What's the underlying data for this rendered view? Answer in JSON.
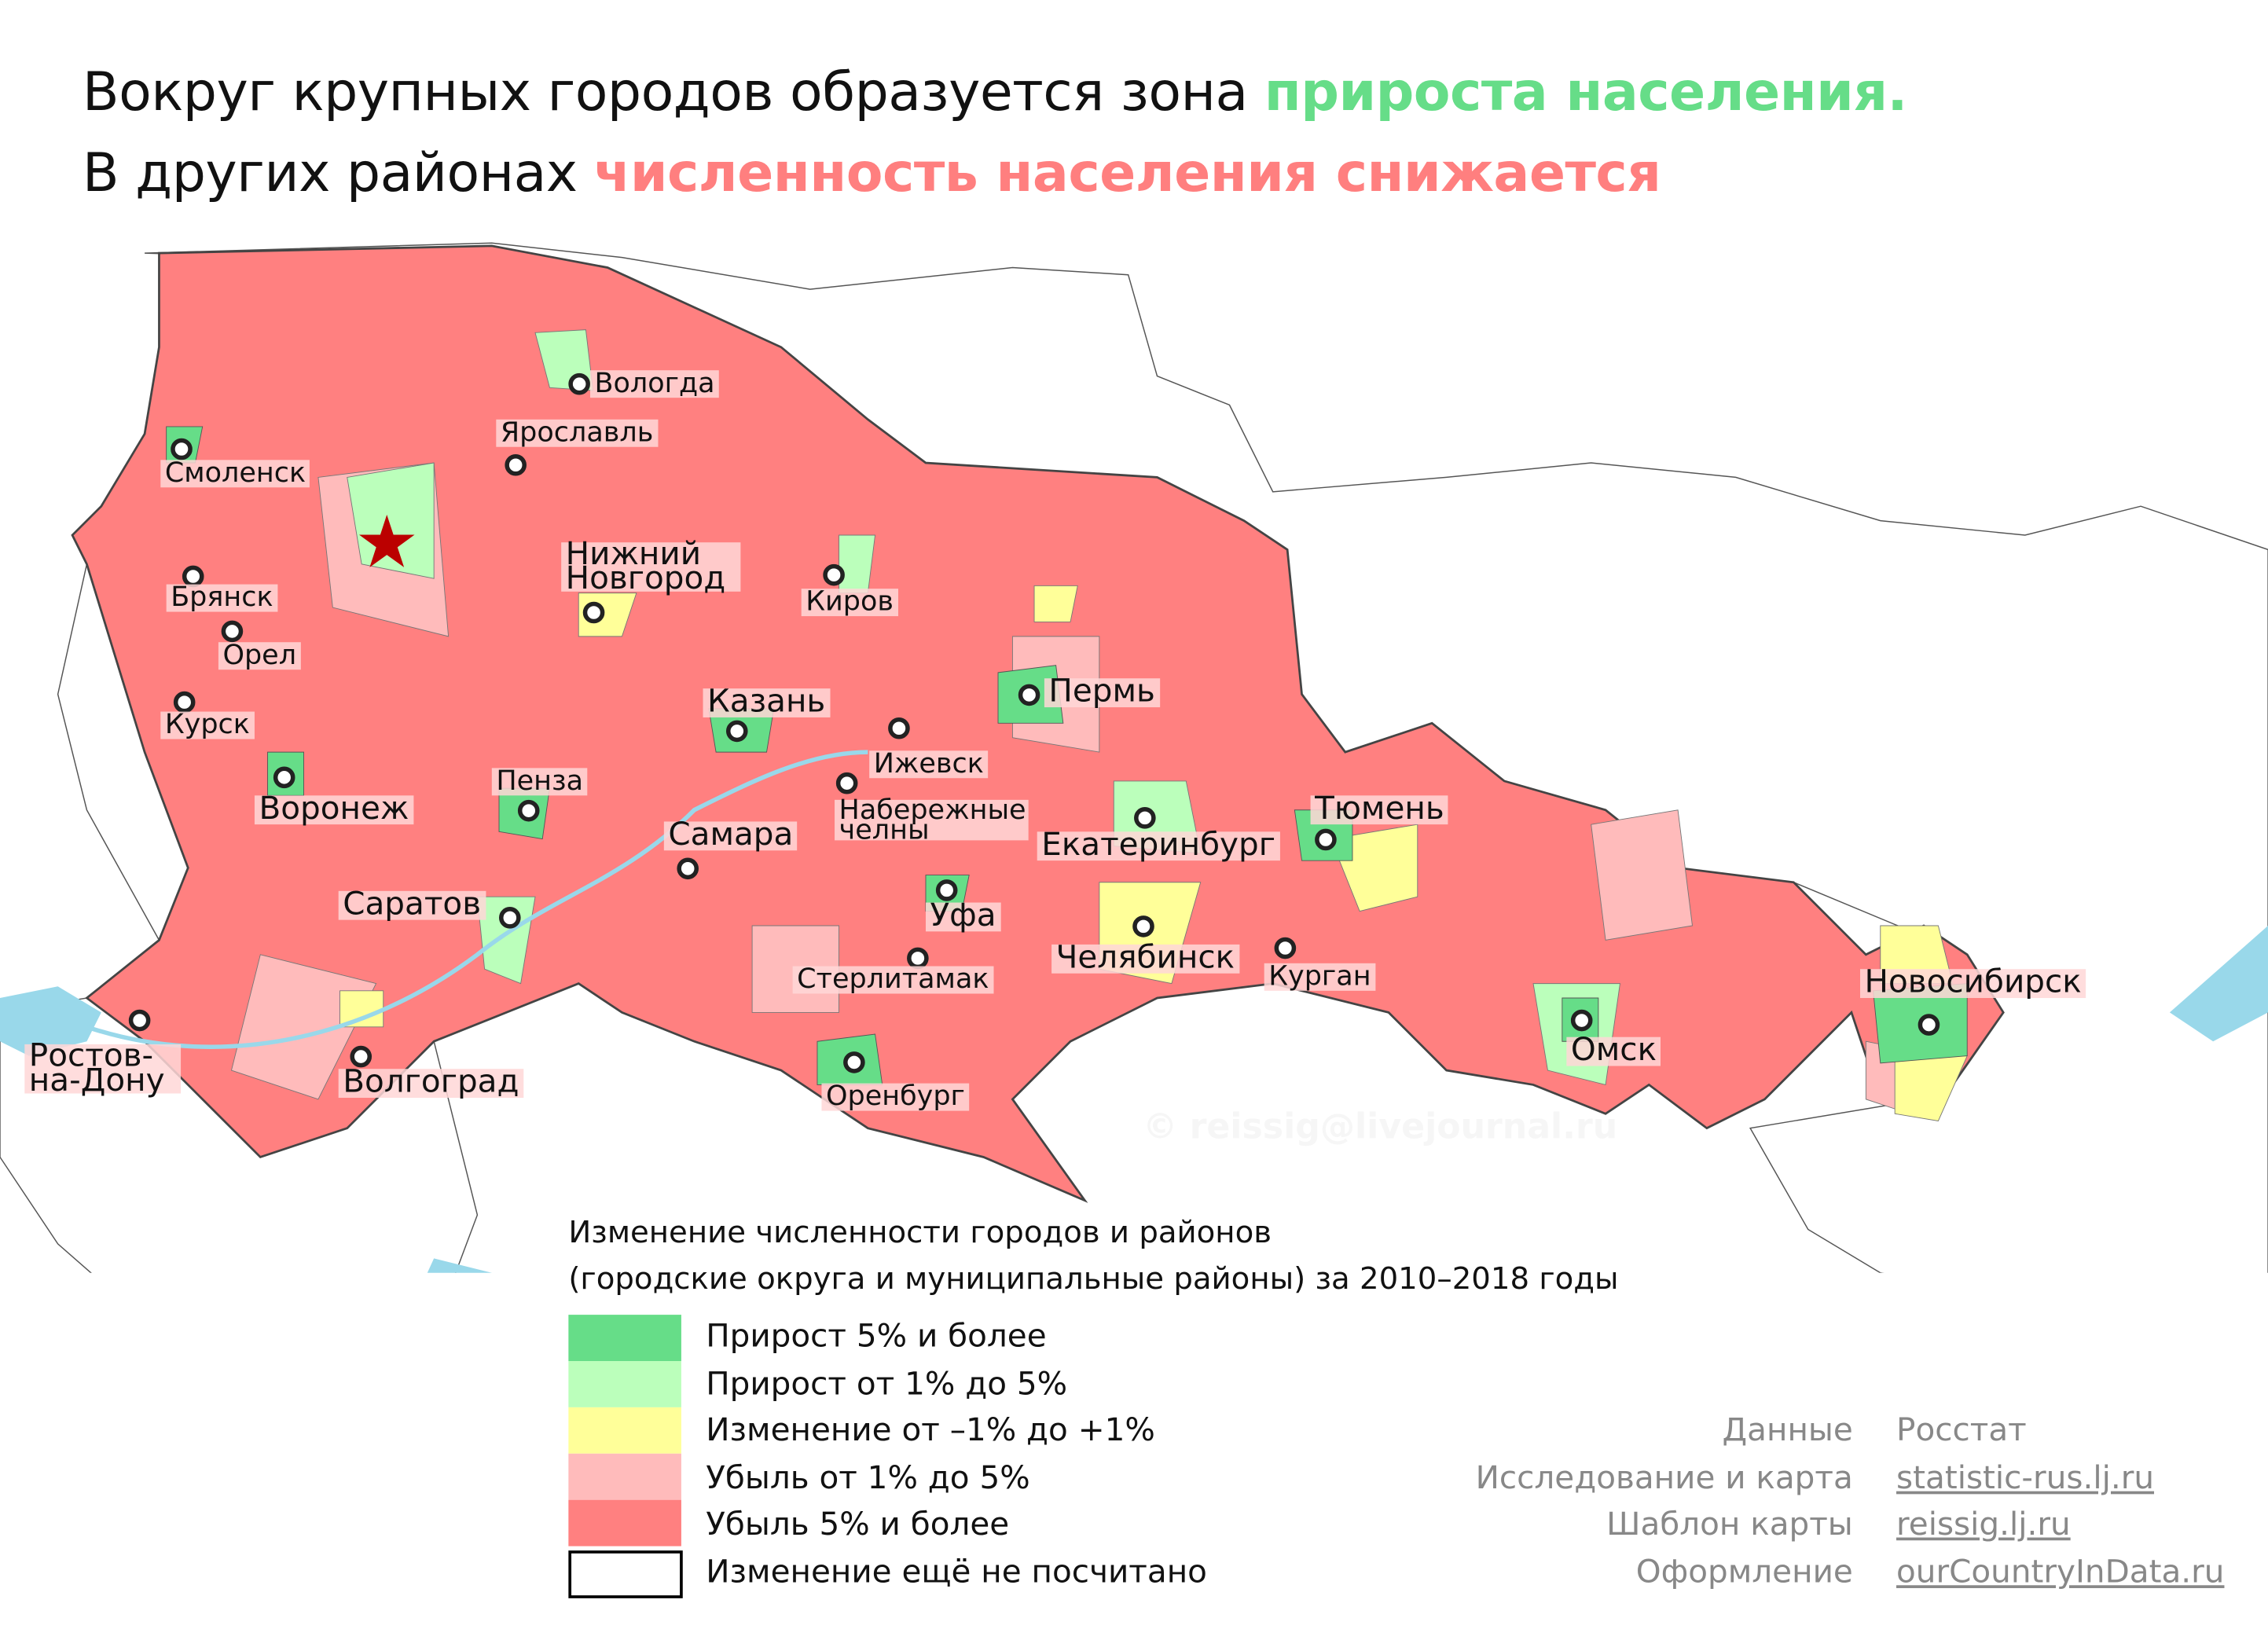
{
  "title": {
    "line1_prefix": "Вокруг крупных городов образуется зона ",
    "line1_highlight": "прироста населения",
    "line1_suffix": ".",
    "line2_prefix": "В других районах ",
    "line2_highlight": "численность населения снижается"
  },
  "colors": {
    "growth_strong": "#66dd88",
    "growth": "#bbffbb",
    "stable": "#ffff99",
    "decline": "#ffbbbb",
    "decline_strong": "#ff8080",
    "not_calculated": "#ffffff",
    "water": "#99d8ea",
    "capital_star": "#b00000"
  },
  "map": {
    "capital_icon": "star-icon",
    "cities": [
      "Вологда",
      "Ярославль",
      "Смоленск",
      "Нижний Новгород",
      "Брянск",
      "Орел",
      "Курск",
      "Киров",
      "Пермь",
      "Казань",
      "Ижевск",
      "Воронеж",
      "Пенза",
      "Набережные челны",
      "Тюмень",
      "Самара",
      "Екатеринбург",
      "Уфа",
      "Саратов",
      "Челябинск",
      "Курган",
      "Стерлитамак",
      "Новосибирск",
      "Ростов-на-Дону",
      "Волгоград",
      "Омск",
      "Оренбург"
    ],
    "watermark": "© reissig@livejournal.ru"
  },
  "legend": {
    "title_line1": "Изменение численности городов и районов",
    "title_line2": "(городские округа и муниципальные районы) за 2010–2018 годы",
    "items": [
      {
        "label": "Прирост 5% и более",
        "color": "#66dd88"
      },
      {
        "label": "Прирост от 1% до 5%",
        "color": "#bbffbb"
      },
      {
        "label": "Изменение от –1% до +1%",
        "color": "#ffff99"
      },
      {
        "label": "Убыль от 1% до 5%",
        "color": "#ffbbbb"
      },
      {
        "label": "Убыль 5% и более",
        "color": "#ff8080"
      },
      {
        "label": "Изменение ещё не посчитано",
        "color": "#ffffff"
      }
    ]
  },
  "credits": [
    {
      "label": "Данные",
      "value": "Росстат"
    },
    {
      "label": "Исследование и карта",
      "value": "statistic-rus.lj.ru"
    },
    {
      "label": "Шаблон карты",
      "value": "reissig.lj.ru"
    },
    {
      "label": "Оформление",
      "value": "ourCountryInData.ru"
    }
  ]
}
